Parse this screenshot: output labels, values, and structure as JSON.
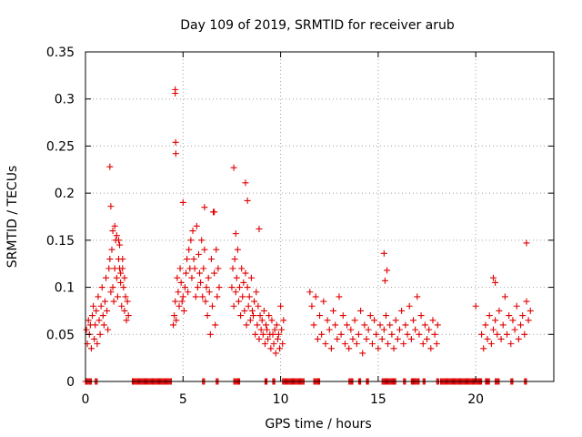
{
  "chart_data": {
    "type": "scatter",
    "title": "Day 109 of 2019, SRMTID for receiver arub",
    "xlabel": "GPS time / hours",
    "ylabel": "SRMTID / TECUs",
    "xlim": [
      0,
      24
    ],
    "ylim": [
      0,
      0.35
    ],
    "x_ticks": [
      0,
      5,
      10,
      15,
      20
    ],
    "y_ticks": [
      0,
      0.05,
      0.1,
      0.15,
      0.2,
      0.25,
      0.3,
      0.35
    ],
    "x_tick_labels": [
      "0",
      "5",
      "10",
      "15",
      "20"
    ],
    "y_tick_labels": [
      "0",
      "0.05",
      "0.1",
      "0.15",
      "0.2",
      "0.25",
      "0.3",
      "0.35"
    ],
    "grid": true,
    "marker": "+",
    "color": "#e00000",
    "series": [
      {
        "name": "SRMTID",
        "x": [
          0.05,
          0.1,
          0.15,
          0.2,
          0.25,
          0.3,
          0.35,
          0.4,
          0.45,
          0.5,
          0.55,
          0.6,
          0.65,
          0.7,
          0.75,
          0.8,
          0.85,
          0.9,
          0.95,
          1.0,
          1.05,
          1.1,
          1.15,
          1.2,
          1.25,
          1.3,
          1.35,
          1.4,
          1.45,
          1.5,
          1.55,
          1.6,
          1.65,
          1.7,
          1.75,
          1.8,
          1.85,
          1.9,
          1.95,
          2.0,
          2.05,
          2.1,
          2.15,
          2.2,
          1.25,
          1.3,
          1.4,
          1.5,
          1.6,
          1.7,
          1.75,
          1.8,
          1.9,
          2.0,
          4.5,
          4.55,
          4.6,
          4.65,
          4.7,
          4.75,
          4.8,
          4.85,
          4.9,
          4.95,
          5.0,
          5.05,
          5.1,
          5.15,
          5.2,
          5.25,
          5.3,
          5.35,
          5.4,
          5.45,
          5.5,
          5.55,
          5.6,
          5.65,
          5.7,
          5.75,
          5.8,
          5.85,
          5.9,
          5.95,
          6.0,
          6.05,
          6.1,
          6.15,
          6.2,
          6.25,
          6.3,
          6.35,
          6.4,
          6.45,
          6.5,
          6.55,
          6.6,
          6.65,
          6.7,
          6.75,
          6.8,
          6.85,
          4.6,
          4.6,
          4.62,
          4.63,
          5.0,
          6.1,
          6.6,
          7.5,
          7.55,
          7.6,
          7.65,
          7.7,
          7.75,
          7.8,
          7.85,
          7.9,
          7.95,
          8.0,
          8.05,
          8.1,
          8.15,
          8.2,
          8.25,
          8.3,
          8.35,
          8.4,
          8.45,
          8.5,
          8.55,
          8.6,
          8.65,
          8.7,
          8.75,
          8.8,
          8.85,
          8.9,
          8.95,
          9.0,
          9.05,
          9.1,
          9.15,
          9.2,
          9.25,
          9.3,
          9.35,
          9.4,
          9.45,
          9.5,
          9.55,
          9.6,
          9.65,
          9.7,
          9.75,
          9.8,
          9.85,
          9.9,
          9.95,
          10.0,
          10.05,
          10.1,
          10.15,
          7.6,
          7.7,
          8.2,
          8.3,
          8.9,
          11.5,
          11.6,
          11.7,
          11.8,
          11.9,
          12.0,
          12.1,
          12.2,
          12.3,
          12.4,
          12.5,
          12.6,
          12.7,
          12.8,
          12.9,
          13.0,
          13.1,
          13.2,
          13.3,
          13.4,
          13.5,
          13.6,
          13.7,
          13.8,
          13.9,
          14.0,
          14.1,
          14.2,
          14.3,
          14.4,
          14.5,
          14.6,
          14.7,
          14.8,
          14.9,
          15.0,
          15.1,
          15.2,
          15.3,
          15.4,
          15.5,
          15.6,
          15.7,
          15.8,
          15.9,
          16.0,
          16.1,
          16.2,
          16.3,
          16.4,
          16.5,
          16.6,
          16.7,
          16.8,
          16.9,
          17.0,
          17.1,
          17.2,
          17.3,
          17.4,
          17.5,
          17.6,
          17.7,
          17.8,
          17.9,
          18.0,
          18.05,
          15.3,
          15.35,
          15.45,
          20.0,
          20.3,
          20.4,
          20.5,
          20.6,
          20.7,
          20.8,
          20.9,
          21.0,
          21.1,
          21.2,
          21.3,
          21.4,
          21.5,
          21.6,
          21.7,
          21.8,
          21.9,
          22.0,
          22.1,
          22.2,
          22.3,
          22.4,
          22.5,
          22.6,
          22.7,
          22.8,
          20.9,
          21.0,
          22.6
        ],
        "y": [
          0.055,
          0.04,
          0.065,
          0.05,
          0.06,
          0.035,
          0.07,
          0.08,
          0.045,
          0.06,
          0.075,
          0.04,
          0.09,
          0.065,
          0.05,
          0.08,
          0.1,
          0.07,
          0.06,
          0.085,
          0.11,
          0.075,
          0.055,
          0.12,
          0.13,
          0.095,
          0.14,
          0.1,
          0.085,
          0.12,
          0.15,
          0.11,
          0.09,
          0.13,
          0.145,
          0.105,
          0.08,
          0.12,
          0.1,
          0.075,
          0.09,
          0.065,
          0.085,
          0.07,
          0.228,
          0.186,
          0.16,
          0.165,
          0.155,
          0.15,
          0.12,
          0.115,
          0.13,
          0.11,
          0.06,
          0.07,
          0.085,
          0.065,
          0.11,
          0.095,
          0.08,
          0.12,
          0.105,
          0.085,
          0.09,
          0.075,
          0.1,
          0.115,
          0.13,
          0.095,
          0.14,
          0.12,
          0.15,
          0.11,
          0.16,
          0.13,
          0.12,
          0.09,
          0.165,
          0.1,
          0.135,
          0.115,
          0.105,
          0.15,
          0.09,
          0.12,
          0.14,
          0.085,
          0.1,
          0.07,
          0.11,
          0.095,
          0.05,
          0.13,
          0.08,
          0.18,
          0.115,
          0.06,
          0.14,
          0.09,
          0.12,
          0.1,
          0.31,
          0.306,
          0.254,
          0.242,
          0.19,
          0.185,
          0.18,
          0.1,
          0.12,
          0.08,
          0.13,
          0.095,
          0.11,
          0.14,
          0.085,
          0.1,
          0.07,
          0.12,
          0.09,
          0.105,
          0.075,
          0.115,
          0.06,
          0.1,
          0.08,
          0.09,
          0.065,
          0.11,
          0.075,
          0.07,
          0.085,
          0.05,
          0.095,
          0.06,
          0.08,
          0.045,
          0.07,
          0.055,
          0.065,
          0.05,
          0.075,
          0.04,
          0.06,
          0.055,
          0.045,
          0.07,
          0.05,
          0.035,
          0.065,
          0.05,
          0.04,
          0.055,
          0.03,
          0.06,
          0.045,
          0.05,
          0.035,
          0.08,
          0.055,
          0.04,
          0.065,
          0.227,
          0.157,
          0.211,
          0.192,
          0.162,
          0.095,
          0.08,
          0.06,
          0.09,
          0.045,
          0.07,
          0.05,
          0.085,
          0.04,
          0.065,
          0.055,
          0.035,
          0.075,
          0.06,
          0.045,
          0.09,
          0.05,
          0.07,
          0.04,
          0.06,
          0.035,
          0.055,
          0.045,
          0.065,
          0.04,
          0.05,
          0.075,
          0.03,
          0.06,
          0.045,
          0.055,
          0.07,
          0.04,
          0.065,
          0.05,
          0.035,
          0.06,
          0.045,
          0.055,
          0.07,
          0.04,
          0.06,
          0.05,
          0.035,
          0.065,
          0.045,
          0.055,
          0.075,
          0.04,
          0.06,
          0.05,
          0.08,
          0.045,
          0.065,
          0.055,
          0.09,
          0.05,
          0.07,
          0.04,
          0.06,
          0.045,
          0.055,
          0.035,
          0.065,
          0.05,
          0.04,
          0.06,
          0.136,
          0.107,
          0.118,
          0.08,
          0.05,
          0.035,
          0.06,
          0.045,
          0.07,
          0.04,
          0.055,
          0.065,
          0.05,
          0.075,
          0.045,
          0.06,
          0.09,
          0.05,
          0.07,
          0.04,
          0.065,
          0.055,
          0.08,
          0.045,
          0.06,
          0.07,
          0.05,
          0.085,
          0.065,
          0.075,
          0.11,
          0.105,
          0.147
        ]
      }
    ],
    "zero_band_ranges_hours": [
      [
        0.0,
        0.3
      ],
      [
        0.5,
        0.6
      ],
      [
        2.4,
        4.4
      ],
      [
        6.0,
        6.1
      ],
      [
        6.7,
        6.8
      ],
      [
        7.6,
        7.9
      ],
      [
        9.2,
        9.3
      ],
      [
        9.6,
        9.7
      ],
      [
        10.1,
        11.2
      ],
      [
        11.7,
        12.0
      ],
      [
        13.5,
        13.7
      ],
      [
        14.0,
        14.1
      ],
      [
        14.4,
        14.5
      ],
      [
        15.2,
        15.9
      ],
      [
        16.3,
        16.4
      ],
      [
        16.7,
        17.1
      ],
      [
        17.3,
        17.4
      ],
      [
        18.0,
        18.1
      ],
      [
        18.2,
        20.3
      ],
      [
        20.5,
        20.7
      ],
      [
        21.0,
        21.2
      ],
      [
        21.8,
        21.9
      ],
      [
        22.5,
        22.6
      ]
    ]
  }
}
